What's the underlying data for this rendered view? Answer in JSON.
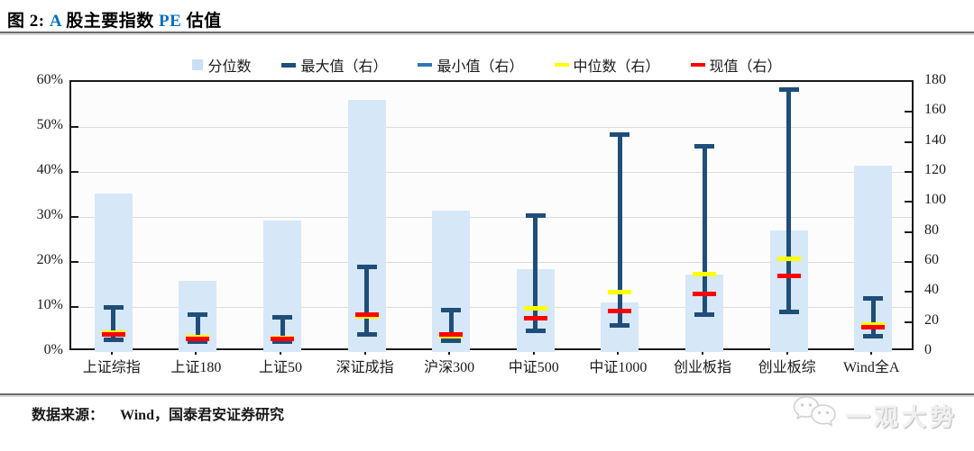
{
  "title": {
    "parts": [
      {
        "text": "图 2:  ",
        "color": "#000000"
      },
      {
        "text": "A",
        "color": "#0070c0"
      },
      {
        "text": " 股主要指数 ",
        "color": "#000000"
      },
      {
        "text": "PE",
        "color": "#0070c0"
      },
      {
        "text": " 估值",
        "color": "#000000"
      }
    ]
  },
  "legend": [
    {
      "label": "分位数",
      "marker": "square",
      "color": "#c9dff5",
      "width": 12,
      "height": 12
    },
    {
      "label": "最大值（右）",
      "marker": "dash",
      "color": "#1f4e79",
      "width": 16,
      "height": 5
    },
    {
      "label": "最小值（右）",
      "marker": "dash",
      "color": "#2e75b6",
      "width": 16,
      "height": 4
    },
    {
      "label": "中位数（右）",
      "marker": "dash",
      "color": "#ffff00",
      "width": 16,
      "height": 4
    },
    {
      "label": "现值（右）",
      "marker": "dash",
      "color": "#ff0000",
      "width": 16,
      "height": 4
    }
  ],
  "chart_data": {
    "type": "bar",
    "title": "A股主要指数PE估值",
    "categories": [
      "上证综指",
      "上证180",
      "上证50",
      "深证成指",
      "沪深300",
      "中证500",
      "中证1000",
      "创业板指",
      "创业板综",
      "Wind全A"
    ],
    "series": [
      {
        "name": "分位数",
        "axis": "left",
        "unit": "%",
        "render": "bar",
        "values": [
          35.2,
          15.8,
          29.2,
          56.0,
          31.5,
          18.5,
          11.0,
          17.3,
          27.0,
          41.5
        ]
      },
      {
        "name": "最大值（右）",
        "axis": "right",
        "render": "whisker-max",
        "values": [
          30,
          25,
          23,
          57,
          28,
          91,
          145,
          137,
          175,
          36
        ]
      },
      {
        "name": "最小值（右）",
        "axis": "right",
        "render": "whisker-min",
        "values": [
          8,
          7,
          7,
          12,
          7.5,
          14,
          17.5,
          25,
          27,
          10.5
        ]
      },
      {
        "name": "中位数（右）",
        "axis": "right",
        "render": "tick-strip",
        "values": [
          13,
          10,
          9.5,
          24,
          10.5,
          29,
          40,
          52,
          62,
          18.5
        ]
      },
      {
        "name": "现值（右）",
        "axis": "right",
        "render": "tick-strip",
        "values": [
          11.5,
          8.5,
          8.5,
          25,
          12,
          22.5,
          27.5,
          38.5,
          50.5,
          16.5
        ]
      }
    ],
    "left_axis": {
      "min": 0,
      "max": 60,
      "tick_values": [
        0,
        10,
        20,
        30,
        40,
        50,
        60
      ],
      "tick_labels": [
        "0%",
        "10%",
        "20%",
        "30%",
        "40%",
        "50%",
        "60%"
      ]
    },
    "right_axis": {
      "min": 0,
      "max": 180,
      "tick_values": [
        0,
        20,
        40,
        60,
        80,
        100,
        120,
        140,
        160,
        180
      ],
      "tick_labels": [
        "0",
        "20",
        "40",
        "60",
        "80",
        "100",
        "120",
        "140",
        "160",
        "180"
      ]
    },
    "grid": true,
    "legend_position": "top"
  },
  "colors": {
    "bar_fill": "#d6e7f7",
    "whisker": "#1f4e79",
    "min_marker": "#2e75b6",
    "median": "#ffff00",
    "current": "#ff0000",
    "gridline": "#dcdcdc",
    "axis": "#1a1a1a",
    "accent_blue": "#0070c0"
  },
  "source": {
    "label": "数据来源：",
    "text": "Wind，国泰君安证券研究"
  },
  "watermark": {
    "text": "一观大势",
    "icon": "chat-bubbles-icon"
  }
}
